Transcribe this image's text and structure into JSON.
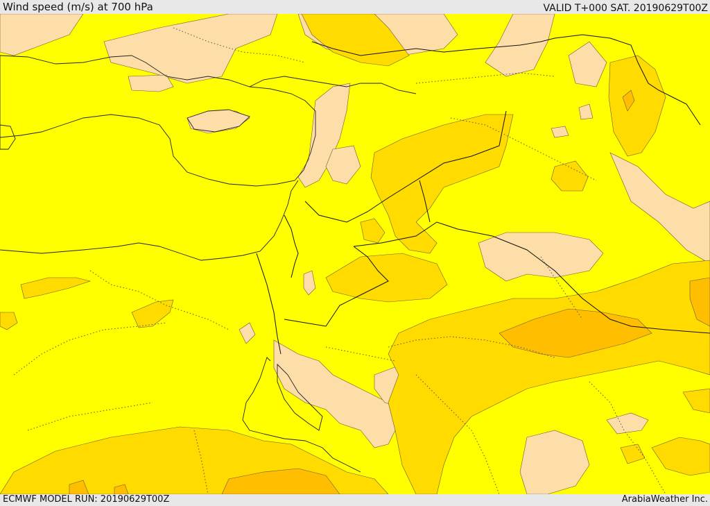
{
  "header": {
    "title": "Wind speed (m/s) at 700 hPa",
    "valid": "VALID T+000 SAT. 20190629T00Z"
  },
  "footer": {
    "model_run": "ECMWF MODEL RUN: 20190629T00Z",
    "credit": "ArabiaWeather Inc."
  },
  "colors": {
    "sea": "#ffffff",
    "band_low": "#fedea8",
    "band_mid": "#ffff00",
    "band_high": "#ffdb00",
    "band_top": "#ffbe00"
  }
}
